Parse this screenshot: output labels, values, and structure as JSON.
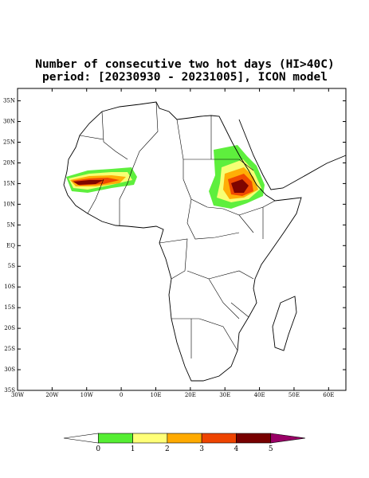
{
  "title": [
    "Number of consecutive two hot days (HI>40C)",
    "period: [20230930 - 20231005], ICON model"
  ],
  "map": {
    "lonlim": [
      -30,
      65
    ],
    "latlim": [
      -35,
      38
    ],
    "lat_ticks": [
      {
        "value": 35,
        "label": "35N"
      },
      {
        "value": 30,
        "label": "30N"
      },
      {
        "value": 25,
        "label": "25N"
      },
      {
        "value": 20,
        "label": "20N"
      },
      {
        "value": 15,
        "label": "15N"
      },
      {
        "value": 10,
        "label": "10N"
      },
      {
        "value": 5,
        "label": "5N"
      },
      {
        "value": 0,
        "label": "EQ"
      },
      {
        "value": -5,
        "label": "5S"
      },
      {
        "value": -10,
        "label": "10S"
      },
      {
        "value": -15,
        "label": "15S"
      },
      {
        "value": -20,
        "label": "20S"
      },
      {
        "value": -25,
        "label": "25S"
      },
      {
        "value": -30,
        "label": "30S"
      },
      {
        "value": -35,
        "label": "35S"
      }
    ],
    "lon_ticks": [
      {
        "value": -30,
        "label": "30W"
      },
      {
        "value": -20,
        "label": "20W"
      },
      {
        "value": -10,
        "label": "10W"
      },
      0,
      {
        "value": 10,
        "label": "10E"
      },
      {
        "value": 20,
        "label": "20E"
      },
      {
        "value": 30,
        "label": "30E"
      },
      {
        "value": 40,
        "label": "40E"
      },
      {
        "value": 50,
        "label": "50E"
      },
      {
        "value": 60,
        "label": "60E"
      }
    ]
  },
  "colorbar": {
    "levels": [
      0,
      1,
      2,
      3,
      4,
      5
    ],
    "colors": [
      "#ffffff",
      "#55ee33",
      "#ffff77",
      "#ffaa00",
      "#ee4400",
      "#770000",
      "#990066"
    ]
  }
}
